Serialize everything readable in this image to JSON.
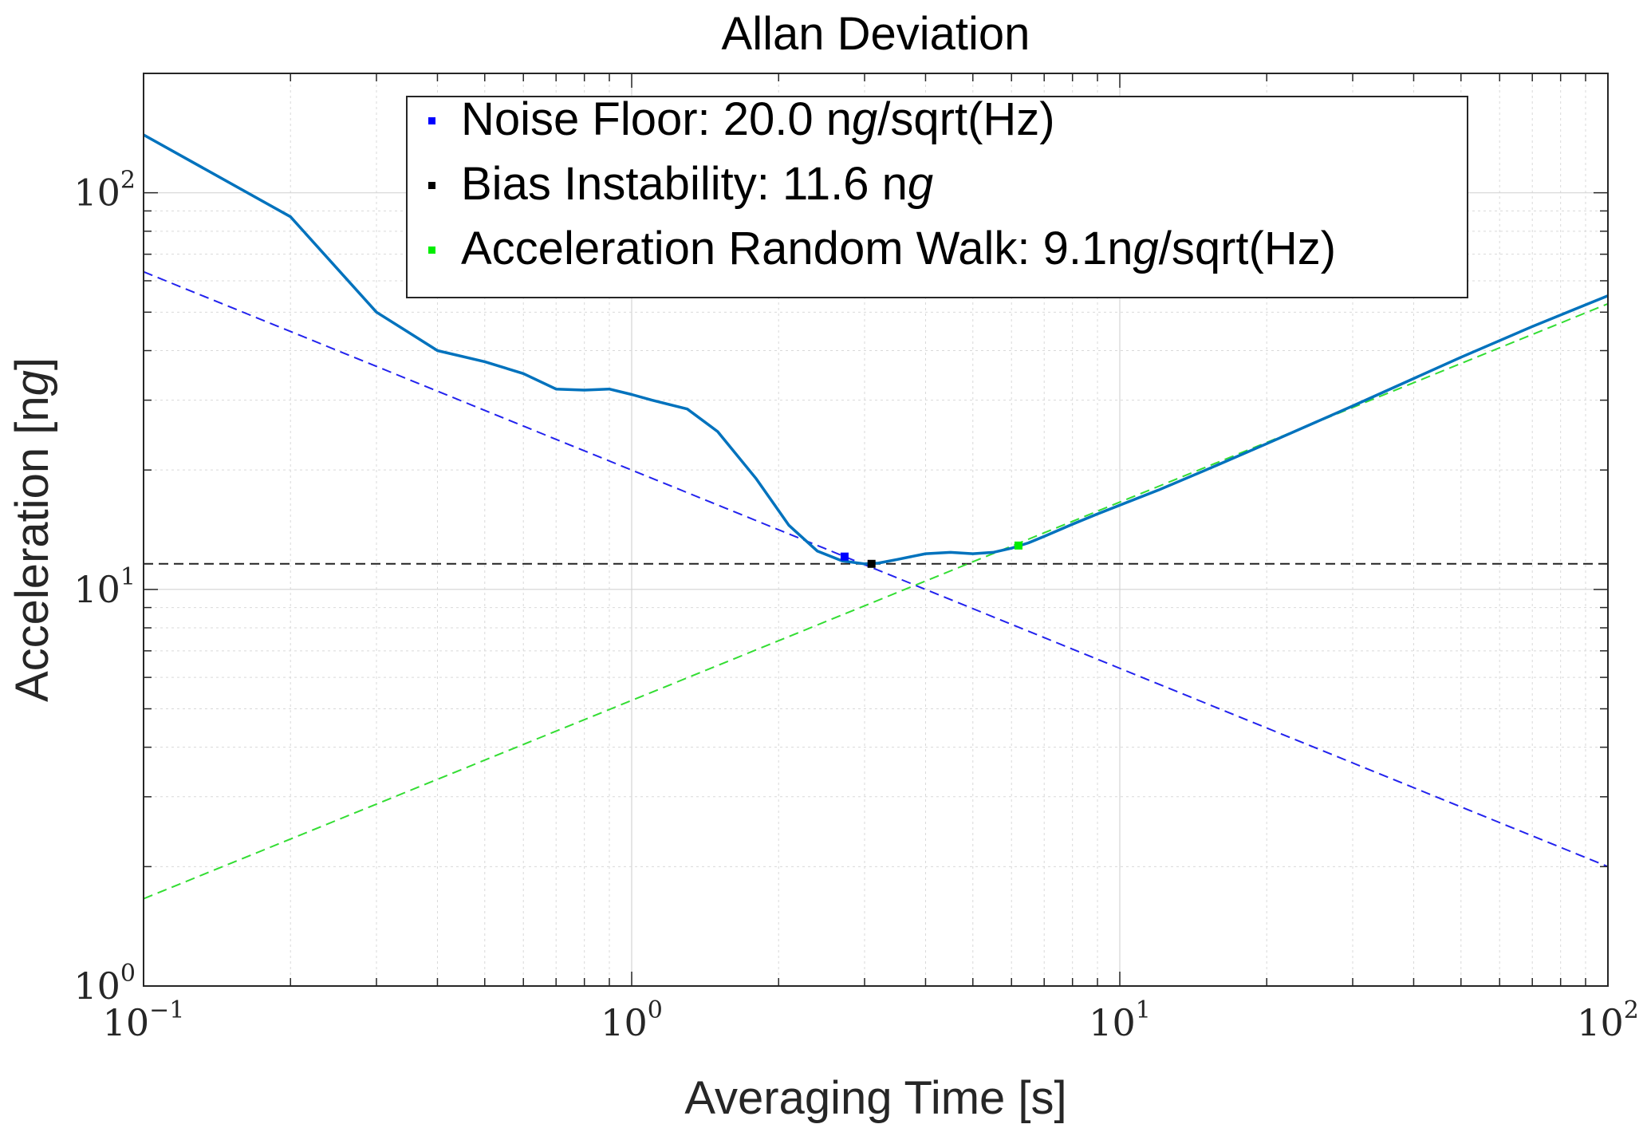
{
  "chart_data": {
    "type": "line",
    "title": "Allan Deviation",
    "xlabel": "Averaging Time [s]",
    "ylabel": "Acceleration [ng]",
    "xscale": "log",
    "yscale": "log",
    "xlim": [
      0.1,
      100
    ],
    "ylim": [
      1,
      200
    ],
    "grid": true,
    "legend_location": "top-center",
    "x_ticks": [
      {
        "base": "10",
        "exp": "−1",
        "value": 0.1
      },
      {
        "base": "10",
        "exp": "0",
        "value": 1
      },
      {
        "base": "10",
        "exp": "1",
        "value": 10
      },
      {
        "base": "10",
        "exp": "2",
        "value": 100
      }
    ],
    "y_ticks": [
      {
        "base": "10",
        "exp": "0",
        "value": 1
      },
      {
        "base": "10",
        "exp": "1",
        "value": 10
      },
      {
        "base": "10",
        "exp": "2",
        "value": 100
      }
    ],
    "series": [
      {
        "name": "Allan deviation",
        "style": "solid",
        "color": "#0072bd",
        "x": [
          0.1,
          0.2,
          0.3,
          0.4,
          0.5,
          0.6,
          0.7,
          0.8,
          0.9,
          1.0,
          1.1,
          1.3,
          1.5,
          1.8,
          2.1,
          2.4,
          2.7,
          3.0,
          3.2,
          3.5,
          4.0,
          4.5,
          5.0,
          5.5,
          6.0,
          6.5,
          7,
          8,
          9,
          10,
          12,
          15,
          20,
          30,
          50,
          70,
          100
        ],
        "y": [
          140,
          87,
          50,
          40,
          37.5,
          35,
          32,
          31.8,
          32,
          31,
          30,
          28.5,
          25,
          19,
          14.5,
          12.5,
          11.8,
          11.6,
          11.65,
          11.9,
          12.3,
          12.4,
          12.3,
          12.4,
          12.7,
          13.1,
          13.6,
          14.6,
          15.5,
          16.3,
          17.8,
          20,
          23.3,
          29,
          38.5,
          46,
          55
        ]
      },
      {
        "name": "Noise Floor fit",
        "style": "dashed",
        "color": "#2222ee",
        "x": [
          0.1,
          100
        ],
        "y": [
          63.2,
          2.0
        ]
      },
      {
        "name": "Bias Instability fit",
        "style": "dashed",
        "color": "#222222",
        "x": [
          0.1,
          100
        ],
        "y": [
          11.6,
          11.6
        ]
      },
      {
        "name": "Acceleration Random Walk fit",
        "style": "dashed",
        "color": "#33dd33",
        "x": [
          0.1,
          100
        ],
        "y": [
          1.66,
          52.5
        ]
      }
    ],
    "markers": [
      {
        "name": "noise-floor-marker",
        "color": "#0000ff",
        "x": 2.73,
        "y": 12.1
      },
      {
        "name": "bias-instability-marker",
        "color": "#000000",
        "x": 3.1,
        "y": 11.6
      },
      {
        "name": "random-walk-marker",
        "color": "#00ee00",
        "x": 6.2,
        "y": 12.9
      }
    ],
    "legend": [
      {
        "key": "noise",
        "color": "#0000ff",
        "parts": [
          {
            "t": "Noise Floor: 20.0 n"
          },
          {
            "t": "g",
            "italic": true
          },
          {
            "t": "/sqrt(Hz)"
          }
        ]
      },
      {
        "key": "bias",
        "color": "#000000",
        "parts": [
          {
            "t": "Bias Instability: 11.6 n"
          },
          {
            "t": "g",
            "italic": true
          }
        ]
      },
      {
        "key": "arw",
        "color": "#00ee00",
        "parts": [
          {
            "t": "Acceleration Random Walk: 9.1n"
          },
          {
            "t": "g",
            "italic": true
          },
          {
            "t": "/sqrt(Hz)"
          }
        ]
      }
    ]
  }
}
